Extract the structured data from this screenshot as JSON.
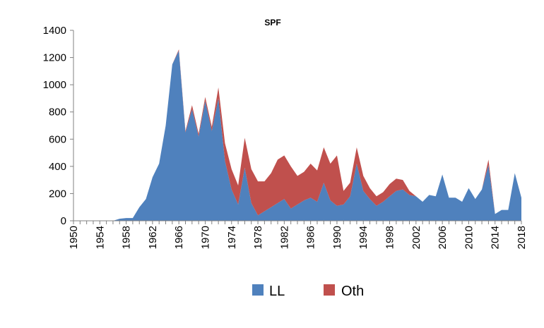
{
  "chart_data": {
    "type": "area",
    "stacked": true,
    "title": "SPF",
    "xlabel": "",
    "ylabel": "",
    "ylim": [
      0,
      1400
    ],
    "yticks": [
      "0",
      "200",
      "400",
      "600",
      "800",
      "1000",
      "1200",
      "1400"
    ],
    "xticks": [
      "1950",
      "1954",
      "1958",
      "1962",
      "1966",
      "1970",
      "1974",
      "1978",
      "1982",
      "1986",
      "1990",
      "1994",
      "1998",
      "2002",
      "2006",
      "2010",
      "2014",
      "2018"
    ],
    "grid": false,
    "legend": "bottom",
    "x": [
      1950,
      1951,
      1952,
      1953,
      1954,
      1955,
      1956,
      1957,
      1958,
      1959,
      1960,
      1961,
      1962,
      1963,
      1964,
      1965,
      1966,
      1967,
      1968,
      1969,
      1970,
      1971,
      1972,
      1973,
      1974,
      1975,
      1976,
      1977,
      1978,
      1979,
      1980,
      1981,
      1982,
      1983,
      1984,
      1985,
      1986,
      1987,
      1988,
      1989,
      1990,
      1991,
      1992,
      1993,
      1994,
      1995,
      1996,
      1997,
      1998,
      1999,
      2000,
      2001,
      2002,
      2003,
      2004,
      2005,
      2006,
      2007,
      2008,
      2009,
      2010,
      2011,
      2012,
      2013,
      2014,
      2015,
      2016,
      2017,
      2018
    ],
    "series": [
      {
        "name": "LL",
        "color": "#4f81bd",
        "values": [
          0,
          0,
          0,
          0,
          0,
          0,
          0,
          15,
          20,
          20,
          100,
          160,
          320,
          420,
          700,
          1150,
          1250,
          650,
          820,
          620,
          880,
          660,
          900,
          440,
          230,
          120,
          390,
          130,
          40,
          70,
          100,
          130,
          160,
          90,
          120,
          150,
          170,
          140,
          280,
          150,
          110,
          120,
          180,
          420,
          220,
          160,
          110,
          140,
          180,
          220,
          230,
          190,
          180,
          140,
          190,
          180,
          340,
          170,
          170,
          140,
          240,
          160,
          230,
          410,
          50,
          80,
          80,
          350,
          170
        ]
      },
      {
        "name": "Oth",
        "color": "#c0504d",
        "values": [
          0,
          0,
          0,
          0,
          0,
          0,
          0,
          0,
          0,
          0,
          0,
          0,
          0,
          0,
          0,
          0,
          10,
          10,
          30,
          20,
          30,
          30,
          80,
          130,
          150,
          140,
          220,
          250,
          250,
          220,
          250,
          320,
          320,
          310,
          210,
          210,
          250,
          230,
          260,
          270,
          370,
          100,
          100,
          120,
          110,
          80,
          70,
          70,
          90,
          90,
          70,
          30,
          0,
          0,
          0,
          0,
          0,
          0,
          0,
          0,
          0,
          0,
          0,
          40,
          0,
          0,
          0,
          0,
          0
        ]
      }
    ]
  }
}
